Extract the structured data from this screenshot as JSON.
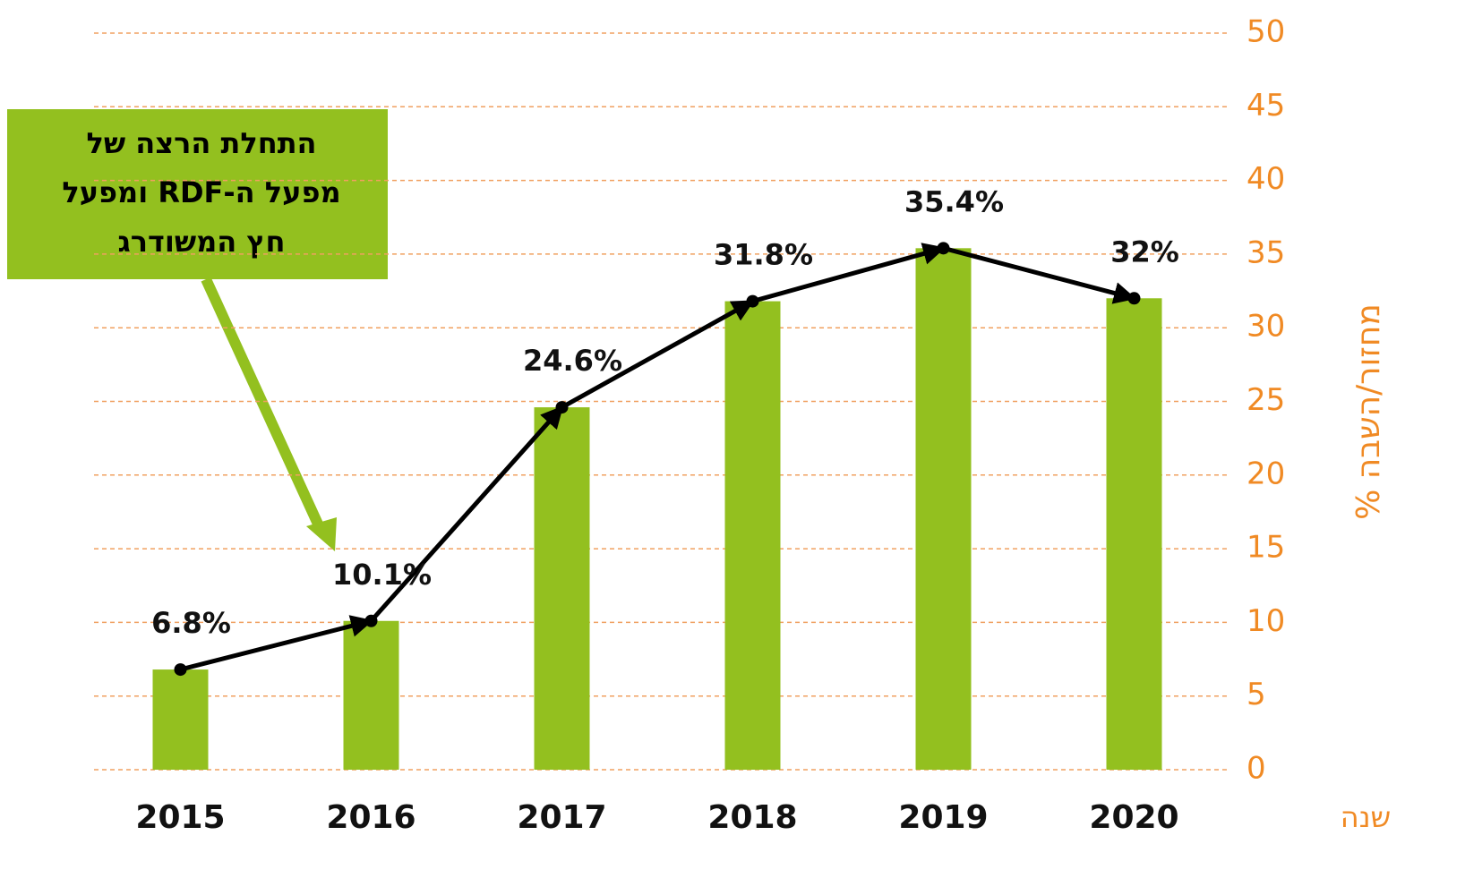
{
  "chart_data": {
    "type": "bar",
    "categories": [
      "2015",
      "2016",
      "2017",
      "2018",
      "2019",
      "2020"
    ],
    "values": [
      6.8,
      10.1,
      24.6,
      31.8,
      35.4,
      32
    ],
    "value_labels": [
      "6.8%",
      "10.1%",
      "24.6%",
      "31.8%",
      "35.4%",
      "32%"
    ],
    "color": "#93c01f",
    "line_color": "#000000",
    "grid_color": "#f0a060",
    "tick_color": "#f08a24",
    "ylim": [
      0,
      50
    ],
    "yticks": [
      0,
      5,
      10,
      15,
      20,
      25,
      30,
      35,
      40,
      45,
      50
    ],
    "grid": true,
    "y_label": "מחזור/השבה %",
    "x_label": "שנה",
    "annotation": [
      "התחלת הרצה של",
      "מפעל ה-RDF ומפעל",
      "חץ המשודרג"
    ]
  }
}
